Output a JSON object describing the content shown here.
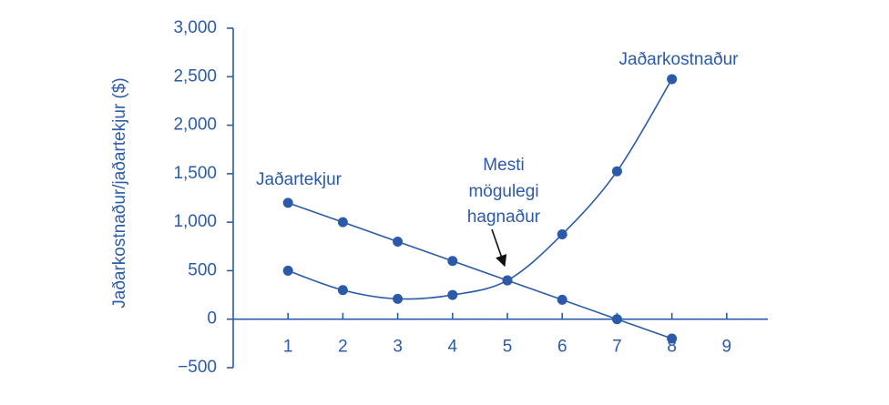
{
  "chart_data": {
    "type": "line",
    "y_label": "Jaðarkostnaður/jaðartekjur ($)",
    "x": [
      1,
      2,
      3,
      4,
      5,
      6,
      7,
      8
    ],
    "series": [
      {
        "name": "Jaðartekjur",
        "color": "#2b5ba8",
        "smooth": false,
        "values": [
          1200,
          1000,
          800,
          600,
          400,
          200,
          0,
          -200
        ]
      },
      {
        "name": "Jaðarkostnaður",
        "color": "#2b5ba8",
        "smooth": true,
        "values": [
          500,
          300,
          210,
          250,
          400,
          875,
          1525,
          2475
        ]
      }
    ],
    "annotation": [
      "Mesti",
      "mögulegi",
      "hagnaður"
    ],
    "xlim": [
      0,
      9.75
    ],
    "xticks": [
      1,
      2,
      3,
      4,
      5,
      6,
      7,
      8,
      9
    ],
    "ylim": [
      -500,
      3000
    ],
    "yticks": [
      {
        "value": -500,
        "label": "−500"
      },
      0,
      500,
      {
        "value": 1000,
        "label": "1,000"
      },
      {
        "value": 1500,
        "label": "1,500"
      },
      {
        "value": 2000,
        "label": "2,000"
      },
      {
        "value": 2500,
        "label": "2,500"
      },
      {
        "value": 3000,
        "label": "3,000"
      }
    ]
  }
}
